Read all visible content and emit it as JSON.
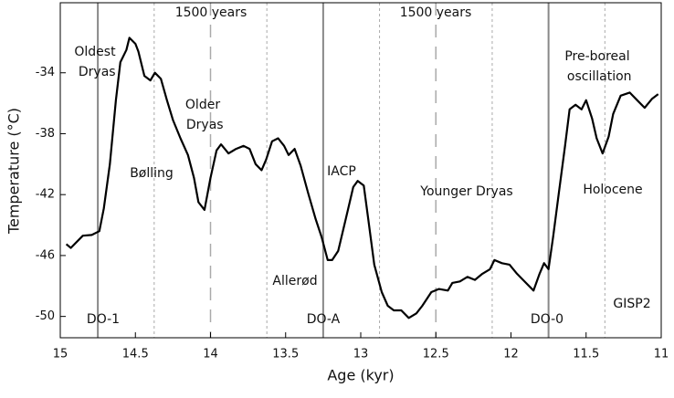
{
  "chart_data": {
    "type": "line",
    "x_label": "Age (kyr)",
    "y_label": "Temperature (°C)",
    "xlim": [
      15,
      11
    ],
    "xticks": [
      15,
      14.5,
      14,
      13.5,
      13,
      12.5,
      12,
      11.5,
      11
    ],
    "ylim": [
      -51.4,
      -29.4
    ],
    "yticks": [
      -50,
      -46,
      -42,
      -38,
      -34
    ],
    "reference_lines": {
      "solid": [
        14.75,
        13.25,
        11.75
      ],
      "dashed": [
        14.0,
        12.5
      ],
      "dotted": [
        14.375,
        13.625,
        12.875,
        12.125,
        11.375
      ]
    },
    "annotations": [
      "1500 years",
      "1500 years",
      "Oldest Dryas",
      "Bølling",
      "Older Dryas",
      "IACP",
      "Allerød",
      "Younger Dryas",
      "Pre-boreal oscillation",
      "Holocene",
      "DO-1",
      "DO-A",
      "DO-0",
      "GISP2"
    ],
    "series": [
      {
        "name": "GISP2",
        "color": "#000000",
        "x": [
          14.96,
          14.93,
          14.85,
          14.79,
          14.74,
          14.71,
          14.67,
          14.63,
          14.6,
          14.56,
          14.54,
          14.5,
          14.48,
          14.44,
          14.4,
          14.37,
          14.33,
          14.29,
          14.25,
          14.2,
          14.15,
          14.11,
          14.08,
          14.04,
          14.0,
          13.96,
          13.93,
          13.88,
          13.83,
          13.78,
          13.74,
          13.7,
          13.66,
          13.63,
          13.59,
          13.55,
          13.51,
          13.48,
          13.44,
          13.4,
          13.35,
          13.3,
          13.26,
          13.22,
          13.19,
          13.15,
          13.1,
          13.05,
          13.02,
          12.98,
          12.95,
          12.91,
          12.86,
          12.82,
          12.78,
          12.73,
          12.68,
          12.63,
          12.59,
          12.53,
          12.48,
          12.42,
          12.39,
          12.34,
          12.29,
          12.24,
          12.19,
          12.14,
          12.11,
          12.06,
          12.01,
          11.96,
          11.9,
          11.85,
          11.81,
          11.78,
          11.75,
          11.72,
          11.68,
          11.64,
          11.61,
          11.57,
          11.53,
          11.5,
          11.46,
          11.43,
          11.39,
          11.35,
          11.32,
          11.27,
          11.21,
          11.16,
          11.11,
          11.06,
          11.02
        ],
        "values": [
          -45.25,
          -45.5,
          -44.7,
          -44.65,
          -44.4,
          -42.9,
          -40,
          -35.8,
          -33.3,
          -32.5,
          -31.7,
          -32.1,
          -32.6,
          -34.2,
          -34.5,
          -34,
          -34.4,
          -35.8,
          -37.1,
          -38.3,
          -39.4,
          -40.9,
          -42.5,
          -43,
          -40.9,
          -39.1,
          -38.7,
          -39.3,
          -39,
          -38.8,
          -39,
          -40,
          -40.4,
          -39.7,
          -38.5,
          -38.3,
          -38.8,
          -39.4,
          -39,
          -40.1,
          -41.9,
          -43.6,
          -44.8,
          -46.3,
          -46.3,
          -45.7,
          -43.6,
          -41.5,
          -41.1,
          -41.4,
          -43.6,
          -46.6,
          -48.4,
          -49.3,
          -49.6,
          -49.6,
          -50.1,
          -49.8,
          -49.3,
          -48.4,
          -48.2,
          -48.3,
          -47.8,
          -47.7,
          -47.4,
          -47.6,
          -47.2,
          -46.9,
          -46.3,
          -46.5,
          -46.6,
          -47.2,
          -47.8,
          -48.3,
          -47.2,
          -46.5,
          -46.9,
          -44.8,
          -41.8,
          -38.8,
          -36.4,
          -36.1,
          -36.4,
          -35.8,
          -37,
          -38.3,
          -39.3,
          -38.2,
          -36.7,
          -35.5,
          -35.3,
          -35.8,
          -36.3,
          -35.7,
          -35.4
        ]
      }
    ]
  }
}
